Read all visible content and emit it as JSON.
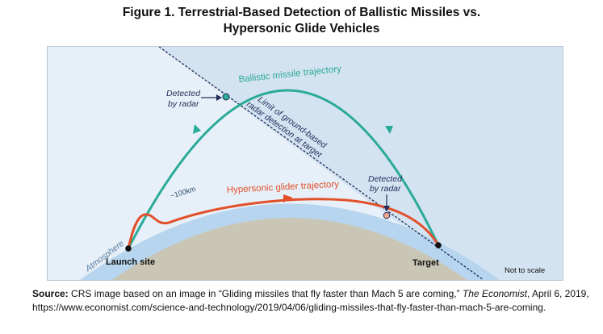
{
  "title": {
    "line1": "Figure 1. Terrestrial-Based Detection of Ballistic Missiles vs.",
    "line2": "Hypersonic Glide Vehicles"
  },
  "diagram": {
    "ballistic_label": "Ballistic missile trajectory",
    "hypersonic_label": "Hypersonic glider trajectory",
    "detected_ballistic_line1": "Detected",
    "detected_ballistic_line2": "by radar",
    "detected_glider_line1": "Detected",
    "detected_glider_line2": "by radar",
    "radar_limit_line1": "Limit of ground-based",
    "radar_limit_line2": "radar detection at target",
    "altitude_label": "~100km",
    "atmosphere_label": "Atmosphere",
    "launch_label": "Launch site",
    "target_label": "Target",
    "scale_note": "Not to scale",
    "colors": {
      "sky": "#e7f0f8",
      "atmosphere": "#b7d5ee",
      "earth": "#c9c6b6",
      "ballistic": "#2aaa98",
      "hypersonic": "#e1502a",
      "radar_line": "#1f2d5a",
      "shadow": "#cfe0f0"
    }
  },
  "source": {
    "label": "Source:",
    "text_before": " CRS image based on an image in “Gliding missiles that fly faster than Mach 5 are coming,” ",
    "publication": "The Economist",
    "text_after": ", April 6, 2019, https://www.economist.com/science-and-technology/2019/04/06/gliding-missiles-that-fly-faster-than-mach-5-are-coming."
  }
}
